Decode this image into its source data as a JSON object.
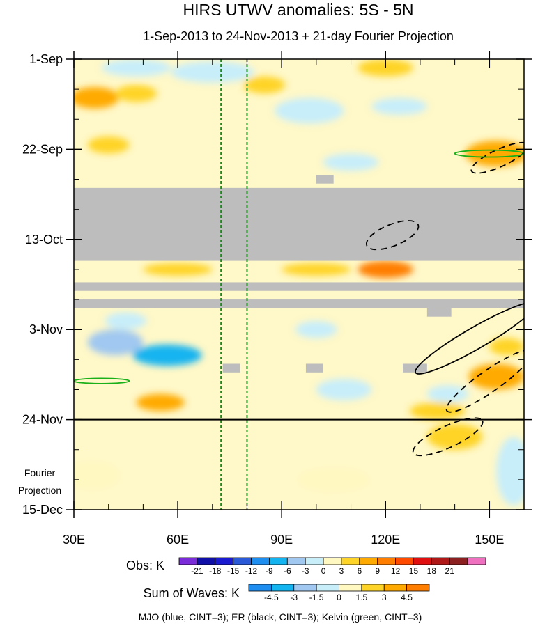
{
  "chart_data": {
    "type": "heatmap",
    "title": "HIRS UTWV anomalies: 5S - 5N",
    "subtitle": "1-Sep-2013 to 24-Nov-2013 + 21-day Fourier Projection",
    "x": {
      "label": "",
      "range": [
        30,
        160
      ],
      "ticks": [
        30,
        60,
        90,
        120,
        150
      ],
      "tick_labels": [
        "30E",
        "60E",
        "90E",
        "120E",
        "150E"
      ]
    },
    "y": {
      "label": "",
      "range": [
        0,
        105
      ],
      "inverted": true,
      "ticks": [
        0,
        21,
        42,
        63,
        84,
        105
      ],
      "tick_labels": [
        "1-Sep",
        "22-Sep",
        "13-Oct",
        "3-Nov",
        "24-Nov",
        "15-Dec"
      ]
    },
    "projection_label": [
      "Fourier",
      "Projection"
    ],
    "reference_longitudes": [
      72.5,
      80
    ],
    "obs_end_day": 84,
    "missing_data": [
      {
        "day_from": 30,
        "day_to": 47,
        "lon_from": 30,
        "lon_to": 160
      },
      {
        "day_from": 52,
        "day_to": 54,
        "lon_from": 30,
        "lon_to": 160
      },
      {
        "day_from": 56,
        "day_to": 58,
        "lon_from": 30,
        "lon_to": 160
      },
      {
        "day_from": 58,
        "day_to": 60,
        "lon_from": 132,
        "lon_to": 139
      },
      {
        "day_from": 27,
        "day_to": 29,
        "lon_from": 100,
        "lon_to": 105
      },
      {
        "day_from": 71,
        "day_to": 73,
        "lon_from": 73,
        "lon_to": 78
      },
      {
        "day_from": 71,
        "day_to": 73,
        "lon_from": 97,
        "lon_to": 102
      },
      {
        "day_from": 71,
        "day_to": 73,
        "lon_from": 125,
        "lon_to": 132
      }
    ],
    "anomaly_patches": [
      {
        "lon": 36,
        "day": 9,
        "rx": 7,
        "ry": 2.5,
        "value": 6
      },
      {
        "lon": 48,
        "day": 8,
        "rx": 6,
        "ry": 2,
        "value": 3
      },
      {
        "lon": 40,
        "day": 20,
        "rx": 6,
        "ry": 2,
        "value": 3
      },
      {
        "lon": 48,
        "day": 2,
        "rx": 10,
        "ry": 2,
        "value": -3
      },
      {
        "lon": 70,
        "day": 3,
        "rx": 12,
        "ry": 2.5,
        "value": -3
      },
      {
        "lon": 120,
        "day": 2,
        "rx": 8,
        "ry": 2,
        "value": 3
      },
      {
        "lon": 124,
        "day": 11,
        "rx": 8,
        "ry": 2,
        "value": -3
      },
      {
        "lon": 98,
        "day": 12,
        "rx": 10,
        "ry": 3,
        "value": -3
      },
      {
        "lon": 85,
        "day": 6,
        "rx": 6,
        "ry": 2,
        "value": 3
      },
      {
        "lon": 152,
        "day": 22,
        "rx": 9,
        "ry": 3,
        "value": 6
      },
      {
        "lon": 110,
        "day": 24,
        "rx": 8,
        "ry": 2,
        "value": -3
      },
      {
        "lon": 120,
        "day": 49,
        "rx": 8,
        "ry": 2,
        "value": 9
      },
      {
        "lon": 60,
        "day": 49,
        "rx": 10,
        "ry": 1.5,
        "value": 3
      },
      {
        "lon": 100,
        "day": 49,
        "rx": 10,
        "ry": 1.5,
        "value": 3
      },
      {
        "lon": 42,
        "day": 66,
        "rx": 8,
        "ry": 3,
        "value": -6
      },
      {
        "lon": 57,
        "day": 69,
        "rx": 10,
        "ry": 2.5,
        "value": -9
      },
      {
        "lon": 45,
        "day": 61,
        "rx": 6,
        "ry": 2,
        "value": -3
      },
      {
        "lon": 100,
        "day": 63,
        "rx": 6,
        "ry": 2,
        "value": -3
      },
      {
        "lon": 108,
        "day": 77,
        "rx": 8,
        "ry": 2.5,
        "value": -3
      },
      {
        "lon": 138,
        "day": 78,
        "rx": 6,
        "ry": 2,
        "value": -3
      },
      {
        "lon": 55,
        "day": 80,
        "rx": 7,
        "ry": 2,
        "value": 6
      },
      {
        "lon": 135,
        "day": 82,
        "rx": 8,
        "ry": 2,
        "value": 3
      },
      {
        "lon": 152,
        "day": 74,
        "rx": 8,
        "ry": 3,
        "value": 6
      },
      {
        "lon": 155,
        "day": 67,
        "rx": 5,
        "ry": 2,
        "value": 3
      },
      {
        "lon": 140,
        "day": 88,
        "rx": 8,
        "ry": 3,
        "value": 4.5
      },
      {
        "lon": 105,
        "day": 98,
        "rx": 10,
        "ry": 2.5,
        "value": 1.5
      },
      {
        "lon": 35,
        "day": 97,
        "rx": 8,
        "ry": 3,
        "value": 1.5
      },
      {
        "lon": 157,
        "day": 96,
        "rx": 5,
        "ry": 8,
        "value": -1.5
      }
    ],
    "wave_contours": [
      {
        "wave": "ER",
        "sign": "negative",
        "lon": 122,
        "day": 41,
        "rx": 8,
        "ry": 2.5,
        "angle": -22
      },
      {
        "wave": "ER",
        "sign": "negative",
        "lon": 153,
        "day": 23,
        "rx": 9,
        "ry": 2,
        "angle": -25
      },
      {
        "wave": "ER",
        "sign": "positive",
        "lon": 146,
        "day": 65,
        "rx": 20,
        "ry": 2.5,
        "angle": -30
      },
      {
        "wave": "ER",
        "sign": "negative",
        "lon": 150,
        "day": 75,
        "rx": 15,
        "ry": 2.5,
        "angle": -35
      },
      {
        "wave": "ER",
        "sign": "negative",
        "lon": 138,
        "day": 88,
        "rx": 11,
        "ry": 2.5,
        "angle": -25
      },
      {
        "wave": "Kelvin",
        "sign": "positive",
        "lon": 150,
        "day": 22,
        "rx": 10,
        "ry": 0.8,
        "angle": 0
      },
      {
        "wave": "Kelvin",
        "sign": "positive",
        "lon": 38,
        "day": 75,
        "rx": 8,
        "ry": 0.6,
        "angle": 0
      }
    ],
    "legends": {
      "obs": {
        "label": "Obs: K",
        "levels": [
          -21,
          -18,
          -15,
          -12,
          -9,
          -6,
          -3,
          0,
          3,
          6,
          9,
          12,
          15,
          18,
          21
        ],
        "colors": [
          "#7b2cd9",
          "#1010a8",
          "#1a1ad0",
          "#2a5ad8",
          "#1e8ef0",
          "#14b4f0",
          "#a0c8f0",
          "#c8eefa",
          "#fff8c0",
          "#ffd428",
          "#ffaa00",
          "#ff7e00",
          "#ff4a00",
          "#e01010",
          "#b01818",
          "#8c2020",
          "#f070c0"
        ]
      },
      "waves": {
        "label": "Sum of Waves: K",
        "levels": [
          -4.5,
          -3,
          -1.5,
          0,
          1.5,
          3,
          4.5
        ],
        "colors": [
          "#1e8ef0",
          "#14b4f0",
          "#a0c8f0",
          "#c8eefa",
          "#fff8c0",
          "#ffd428",
          "#ffaa00",
          "#ff7e00"
        ]
      }
    },
    "footer": "MJO (blue, CINT=3); ER (black, CINT=3); Kelvin (green, CINT=3)"
  }
}
